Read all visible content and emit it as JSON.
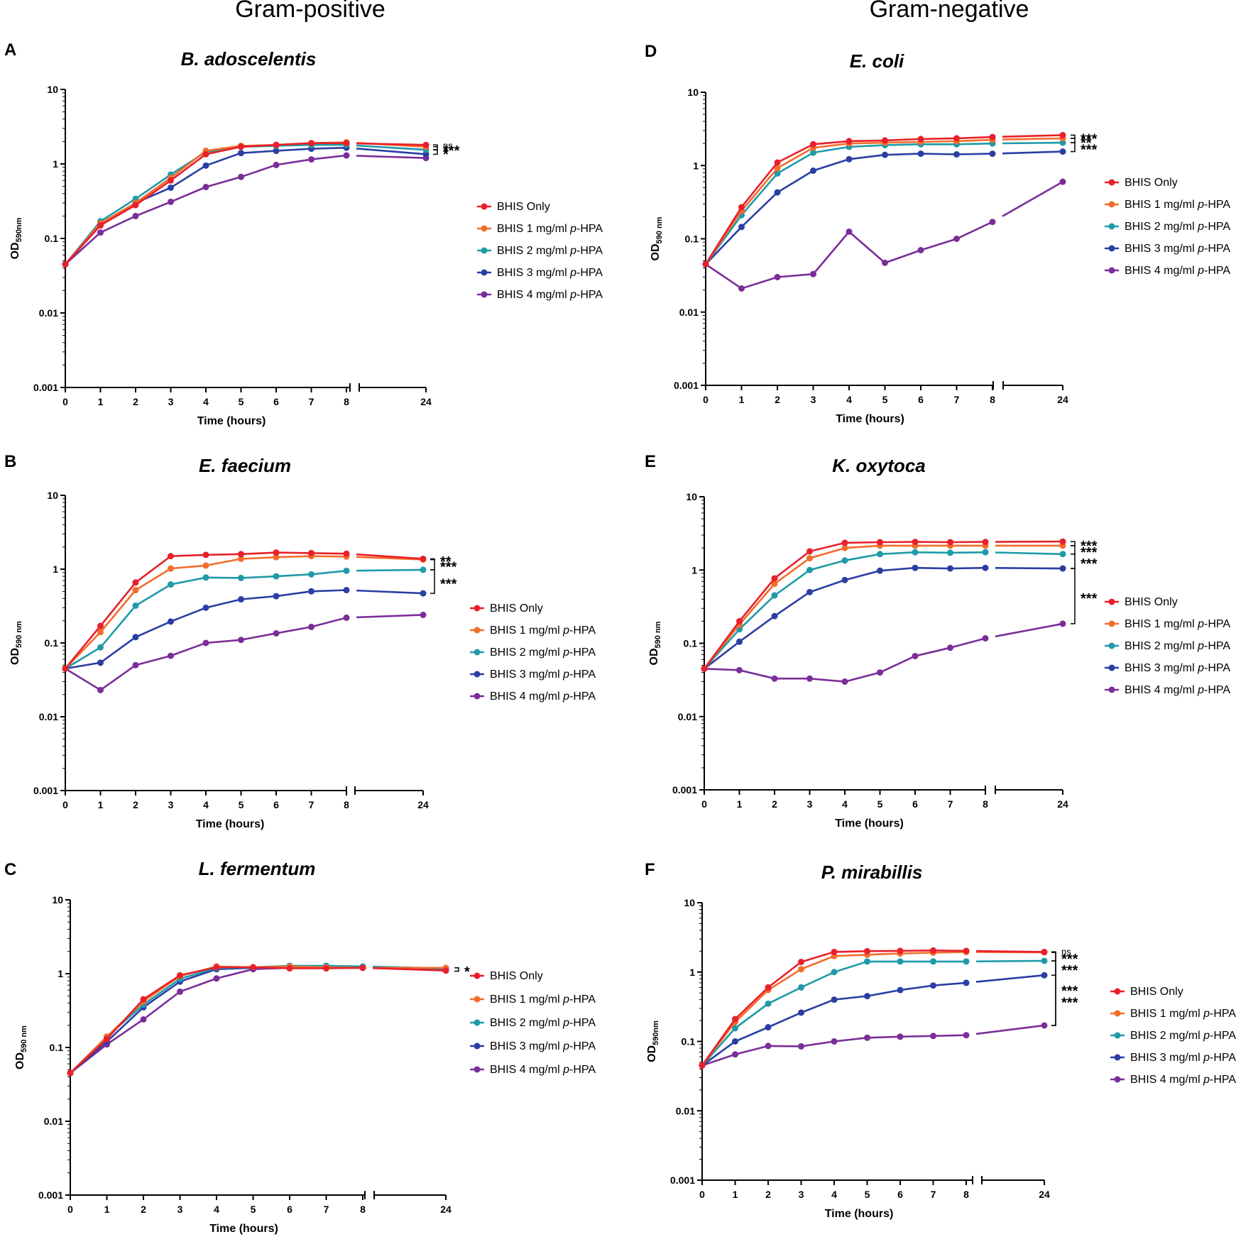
{
  "column_titles": [
    "Gram-positive",
    "Gram-negative"
  ],
  "legend_labels": [
    {
      "prefix": "BHIS Only",
      "italic": "",
      "suffix": ""
    },
    {
      "prefix": "BHIS 1 mg/ml ",
      "italic": "p",
      "suffix": "-HPA"
    },
    {
      "prefix": "BHIS 2 mg/ml ",
      "italic": "p",
      "suffix": "-HPA"
    },
    {
      "prefix": "BHIS 3 mg/ml ",
      "italic": "p",
      "suffix": "-HPA"
    },
    {
      "prefix": "BHIS 4 mg/ml ",
      "italic": "p",
      "suffix": "-HPA"
    }
  ],
  "series_colors": [
    "#e8202a",
    "#f26d2c",
    "#1f9aa8",
    "#2b3ea3",
    "#7b2d99"
  ],
  "chart_data": [
    {
      "panel": "A",
      "type": "line",
      "title": "B. adoscelentis",
      "column": "Gram-positive",
      "xlabel": "Time (hours)",
      "ylabel": "OD",
      "ylabel_sub": "590nm",
      "yscale": "log",
      "ylim": [
        0.001,
        10
      ],
      "x": [
        0,
        1,
        2,
        3,
        4,
        5,
        6,
        7,
        8,
        24
      ],
      "x_ticks": [
        "0",
        "1",
        "2",
        "3",
        "4",
        "5",
        "6",
        "7",
        "8",
        "24"
      ],
      "y_ticks": [
        "0.001",
        "0.01",
        "0.1",
        "1",
        "10"
      ],
      "series": [
        {
          "name": "BHIS Only",
          "values": [
            0.045,
            0.15,
            0.28,
            0.6,
            1.35,
            1.7,
            1.8,
            1.9,
            1.9,
            1.8
          ]
        },
        {
          "name": "BHIS 1 mg/ml p-HPA",
          "values": [
            0.045,
            0.16,
            0.3,
            0.65,
            1.5,
            1.75,
            1.8,
            1.9,
            1.95,
            1.7
          ]
        },
        {
          "name": "BHIS 2 mg/ml p-HPA",
          "values": [
            0.045,
            0.17,
            0.34,
            0.72,
            1.45,
            1.7,
            1.75,
            1.8,
            1.8,
            1.55
          ]
        },
        {
          "name": "BHIS 3 mg/ml p-HPA",
          "values": [
            0.045,
            0.15,
            0.3,
            0.48,
            0.95,
            1.4,
            1.5,
            1.6,
            1.65,
            1.35
          ]
        },
        {
          "name": "BHIS 4 mg/ml p-HPA",
          "values": [
            0.045,
            0.12,
            0.2,
            0.31,
            0.49,
            0.67,
            0.97,
            1.15,
            1.3,
            1.2
          ]
        }
      ],
      "significance": [
        "ns",
        "***",
        "*"
      ]
    },
    {
      "panel": "B",
      "type": "line",
      "title": "E. faecium",
      "column": "Gram-positive",
      "xlabel": "Time (hours)",
      "ylabel": "OD",
      "ylabel_sub": "590 nm",
      "yscale": "log",
      "ylim": [
        0.001,
        10
      ],
      "x": [
        0,
        1,
        2,
        3,
        4,
        5,
        6,
        7,
        8,
        24
      ],
      "x_ticks": [
        "0",
        "1",
        "2",
        "3",
        "4",
        "5",
        "6",
        "7",
        "8",
        "24"
      ],
      "y_ticks": [
        "0.001",
        "0.01",
        "0.1",
        "1",
        "10"
      ],
      "series": [
        {
          "name": "BHIS Only",
          "values": [
            0.045,
            0.17,
            0.66,
            1.5,
            1.56,
            1.6,
            1.68,
            1.65,
            1.62,
            1.38
          ]
        },
        {
          "name": "BHIS 1 mg/ml p-HPA",
          "values": [
            0.045,
            0.14,
            0.52,
            1.02,
            1.12,
            1.38,
            1.45,
            1.5,
            1.48,
            1.35
          ]
        },
        {
          "name": "BHIS 2 mg/ml p-HPA",
          "values": [
            0.045,
            0.087,
            0.32,
            0.62,
            0.77,
            0.76,
            0.8,
            0.85,
            0.95,
            0.98
          ]
        },
        {
          "name": "BHIS 3 mg/ml p-HPA",
          "values": [
            0.045,
            0.054,
            0.12,
            0.195,
            0.3,
            0.39,
            0.43,
            0.5,
            0.52,
            0.47
          ]
        },
        {
          "name": "BHIS 4 mg/ml p-HPA",
          "values": [
            0.045,
            0.023,
            0.05,
            0.067,
            0.1,
            0.11,
            0.135,
            0.165,
            0.22,
            0.24
          ]
        }
      ],
      "significance": [
        "**",
        "***",
        "***"
      ]
    },
    {
      "panel": "C",
      "type": "line",
      "title": "L. fermentum",
      "column": "Gram-positive",
      "xlabel": "Time (hours)",
      "ylabel": "OD",
      "ylabel_sub": "590 nm",
      "yscale": "log",
      "ylim": [
        0.001,
        10
      ],
      "x": [
        0,
        1,
        2,
        3,
        4,
        5,
        6,
        7,
        8,
        24
      ],
      "x_ticks": [
        "0",
        "1",
        "2",
        "3",
        "4",
        "5",
        "6",
        "7",
        "8",
        "24"
      ],
      "y_ticks": [
        "0.001",
        "0.01",
        "0.1",
        "1",
        "10"
      ],
      "series": [
        {
          "name": "BHIS Only",
          "values": [
            0.045,
            0.13,
            0.45,
            0.95,
            1.22,
            1.22,
            1.18,
            1.18,
            1.2,
            1.1
          ]
        },
        {
          "name": "BHIS 1 mg/ml p-HPA",
          "values": [
            0.045,
            0.14,
            0.42,
            0.93,
            1.25,
            1.22,
            1.25,
            1.22,
            1.2,
            1.2
          ]
        },
        {
          "name": "BHIS 2 mg/ml p-HPA",
          "values": [
            0.045,
            0.14,
            0.38,
            0.85,
            1.2,
            1.22,
            1.28,
            1.28,
            1.25,
            1.18
          ]
        },
        {
          "name": "BHIS 3 mg/ml p-HPA",
          "values": [
            0.045,
            0.12,
            0.35,
            0.78,
            1.15,
            1.2,
            1.25,
            1.25,
            1.22,
            1.15
          ]
        },
        {
          "name": "BHIS 4 mg/ml p-HPA",
          "values": [
            0.045,
            0.11,
            0.24,
            0.57,
            0.86,
            1.15,
            1.2,
            1.2,
            1.2,
            1.18
          ]
        }
      ],
      "significance": [
        "*"
      ]
    },
    {
      "panel": "D",
      "type": "line",
      "title": "E. coli",
      "column": "Gram-negative",
      "xlabel": "Time (hours)",
      "ylabel": "OD",
      "ylabel_sub": "590 nm",
      "yscale": "log",
      "ylim": [
        0.001,
        10
      ],
      "x": [
        0,
        1,
        2,
        3,
        4,
        5,
        6,
        7,
        8,
        24
      ],
      "x_ticks": [
        "0",
        "1",
        "2",
        "3",
        "4",
        "5",
        "6",
        "7",
        "8",
        "24"
      ],
      "y_ticks": [
        "0.001",
        "0.01",
        "0.1",
        "1",
        "10"
      ],
      "series": [
        {
          "name": "BHIS Only",
          "values": [
            0.045,
            0.27,
            1.1,
            1.95,
            2.15,
            2.2,
            2.3,
            2.35,
            2.45,
            2.6
          ]
        },
        {
          "name": "BHIS 1 mg/ml p-HPA",
          "values": [
            0.045,
            0.24,
            0.92,
            1.75,
            2.0,
            2.05,
            2.1,
            2.15,
            2.25,
            2.35
          ]
        },
        {
          "name": "BHIS 2 mg/ml p-HPA",
          "values": [
            0.045,
            0.21,
            0.78,
            1.5,
            1.8,
            1.9,
            1.95,
            1.95,
            2.0,
            2.05
          ]
        },
        {
          "name": "BHIS 3 mg/ml p-HPA",
          "values": [
            0.045,
            0.145,
            0.43,
            0.85,
            1.22,
            1.4,
            1.45,
            1.42,
            1.45,
            1.55
          ]
        },
        {
          "name": "BHIS 4 mg/ml p-HPA",
          "values": [
            0.045,
            0.021,
            0.03,
            0.033,
            0.125,
            0.047,
            0.07,
            0.1,
            0.17,
            0.6
          ]
        }
      ],
      "significance": [
        "***",
        "**",
        "***"
      ]
    },
    {
      "panel": "E",
      "type": "line",
      "title": "K. oxytoca",
      "column": "Gram-negative",
      "xlabel": "Time (hours)",
      "ylabel": "OD",
      "ylabel_sub": "590 nm",
      "yscale": "log",
      "ylim": [
        0.001,
        10
      ],
      "x": [
        0,
        1,
        2,
        3,
        4,
        5,
        6,
        7,
        8,
        24
      ],
      "x_ticks": [
        "0",
        "1",
        "2",
        "3",
        "4",
        "5",
        "6",
        "7",
        "8",
        "24"
      ],
      "y_ticks": [
        "0.001",
        "0.01",
        "0.1",
        "1",
        "10"
      ],
      "series": [
        {
          "name": "BHIS Only",
          "values": [
            0.045,
            0.2,
            0.77,
            1.8,
            2.35,
            2.4,
            2.42,
            2.4,
            2.42,
            2.45
          ]
        },
        {
          "name": "BHIS 1 mg/ml p-HPA",
          "values": [
            0.045,
            0.18,
            0.65,
            1.45,
            2.0,
            2.15,
            2.15,
            2.15,
            2.15,
            2.15
          ]
        },
        {
          "name": "BHIS 2 mg/ml p-HPA",
          "values": [
            0.045,
            0.155,
            0.45,
            1.0,
            1.35,
            1.65,
            1.75,
            1.72,
            1.75,
            1.65
          ]
        },
        {
          "name": "BHIS 3 mg/ml p-HPA",
          "values": [
            0.045,
            0.105,
            0.235,
            0.5,
            0.73,
            0.98,
            1.07,
            1.05,
            1.07,
            1.05
          ]
        },
        {
          "name": "BHIS 4 mg/ml p-HPA",
          "values": [
            0.045,
            0.043,
            0.033,
            0.033,
            0.03,
            0.04,
            0.067,
            0.087,
            0.117,
            0.185
          ]
        }
      ],
      "significance": [
        "***",
        "***",
        "***",
        "***"
      ]
    },
    {
      "panel": "F",
      "type": "line",
      "title": "P. mirabillis",
      "column": "Gram-negative",
      "xlabel": "Time (hours)",
      "ylabel": "OD",
      "ylabel_sub": "590nm",
      "yscale": "log",
      "ylim": [
        0.001,
        10
      ],
      "x": [
        0,
        1,
        2,
        3,
        4,
        5,
        6,
        7,
        8,
        24
      ],
      "x_ticks": [
        "0",
        "1",
        "2",
        "3",
        "4",
        "5",
        "6",
        "7",
        "8",
        "24"
      ],
      "y_ticks": [
        "0.001",
        "0.01",
        "0.1",
        "1",
        "10"
      ],
      "series": [
        {
          "name": "BHIS Only",
          "values": [
            0.045,
            0.21,
            0.6,
            1.4,
            1.95,
            2.0,
            2.02,
            2.05,
            2.02,
            1.95
          ]
        },
        {
          "name": "BHIS 1 mg/ml p-HPA",
          "values": [
            0.045,
            0.19,
            0.55,
            1.1,
            1.7,
            1.78,
            1.85,
            1.9,
            1.95,
            1.92
          ]
        },
        {
          "name": "BHIS 2 mg/ml p-HPA",
          "values": [
            0.045,
            0.155,
            0.35,
            0.6,
            1.0,
            1.42,
            1.42,
            1.42,
            1.42,
            1.45
          ]
        },
        {
          "name": "BHIS 3 mg/ml p-HPA",
          "values": [
            0.045,
            0.1,
            0.16,
            0.26,
            0.4,
            0.45,
            0.55,
            0.64,
            0.7,
            0.9
          ]
        },
        {
          "name": "BHIS 4 mg/ml p-HPA",
          "values": [
            0.045,
            0.065,
            0.086,
            0.085,
            0.1,
            0.113,
            0.117,
            0.12,
            0.123,
            0.17
          ]
        }
      ],
      "significance": [
        "ns",
        "***",
        "***",
        "***",
        "***"
      ]
    }
  ]
}
